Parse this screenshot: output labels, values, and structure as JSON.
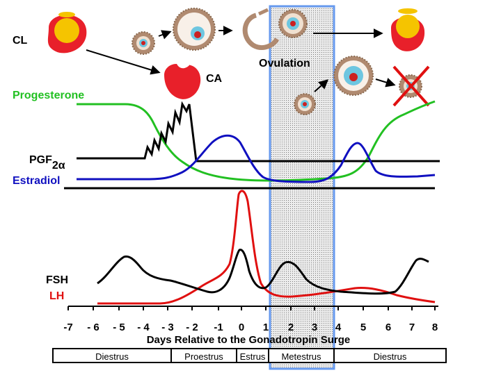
{
  "labels": {
    "cl": "CL",
    "ca": "CA",
    "ovulation": "Ovulation",
    "progesterone": "Progesterone",
    "pgf_main": "PGF",
    "pgf_sub": "2α",
    "estradiol": "Estradiol",
    "fsh": "FSH",
    "lh": "LH",
    "x_axis_title": "Days Relative to the Gonadotropin Surge"
  },
  "x_ticks": [
    "-7",
    "- 6",
    "- 5",
    "- 4",
    "- 3",
    "- 2",
    "-1",
    "0",
    "1",
    "2",
    "3",
    "4",
    "5",
    "6",
    "7",
    "8"
  ],
  "phases": [
    "Diestrus",
    "Proestrus",
    "Estrus",
    "Metestrus",
    "Diestrus"
  ],
  "colors": {
    "progesterone": "#22c022",
    "estradiol": "#1010c0",
    "lh": "#e01010",
    "fsh": "#000000",
    "pgf": "#000000",
    "ovulation_frame": "#6699ee",
    "corpus_red": "#e8202a",
    "corpus_yellow": "#f5c400",
    "follicle_ring": "#b08a70",
    "oocyte_blue": "#6ec6e0",
    "regression_x": "#e01010"
  },
  "icons": [
    "corpus-luteum-icon",
    "follicle-icon",
    "ruptured-follicle-icon",
    "corpus-albicans-icon",
    "regressing-follicle-icon"
  ]
}
